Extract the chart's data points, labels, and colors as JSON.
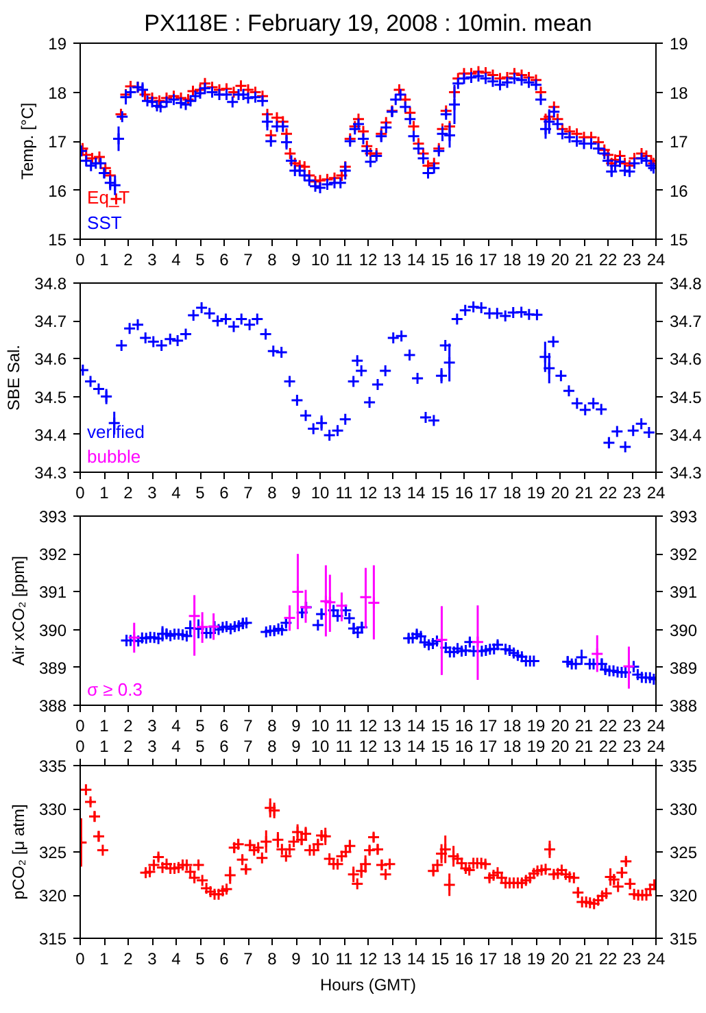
{
  "chart_data": [
    {
      "type": "scatter",
      "title": "PX118E : February 19, 2008 : 10min. mean",
      "ylabel": "Temp. [°C]",
      "xlim": [
        0,
        24
      ],
      "xticks": [
        0,
        1,
        2,
        3,
        4,
        5,
        6,
        7,
        8,
        9,
        10,
        11,
        12,
        13,
        14,
        15,
        16,
        17,
        18,
        19,
        20,
        21,
        22,
        23,
        24
      ],
      "ylim": [
        15,
        19
      ],
      "yticks": [
        15,
        16,
        17,
        18,
        19
      ],
      "y2lim": [
        15,
        19
      ],
      "y2ticks": [
        15,
        16,
        17,
        18,
        19
      ],
      "marker": "cross",
      "legend": "bottom left",
      "series": [
        {
          "name": "Eq_T",
          "color": "#ff0000",
          "x": [
            0.1,
            0.25,
            0.5,
            0.8,
            1.05,
            1.25,
            1.5,
            1.7,
            1.9,
            2.1,
            2.4,
            2.7,
            3.0,
            3.3,
            3.6,
            3.9,
            4.2,
            4.5,
            4.7,
            5.0,
            5.2,
            5.5,
            5.8,
            6.1,
            6.4,
            6.7,
            7.0,
            7.3,
            7.6,
            7.8,
            7.95,
            8.2,
            8.45,
            8.6,
            8.75,
            8.95,
            9.15,
            9.35,
            9.55,
            9.8,
            10.0,
            10.3,
            10.6,
            10.9,
            11.05,
            11.25,
            11.45,
            11.6,
            11.8,
            11.95,
            12.1,
            12.35,
            12.55,
            12.75,
            13.0,
            13.3,
            13.55,
            13.75,
            13.9,
            14.1,
            14.3,
            14.5,
            14.75,
            14.95,
            15.1,
            15.25,
            15.4,
            15.6,
            15.75,
            16.0,
            16.3,
            16.6,
            16.9,
            17.2,
            17.5,
            17.8,
            18.1,
            18.4,
            18.7,
            19.0,
            19.2,
            19.4,
            19.55,
            19.75,
            19.9,
            20.1,
            20.4,
            20.7,
            21.0,
            21.3,
            21.6,
            21.85,
            22.0,
            22.15,
            22.3,
            22.5,
            22.7,
            22.9,
            23.1,
            23.4,
            23.6,
            23.8,
            23.9
          ],
          "values": [
            16.85,
            16.72,
            16.65,
            16.68,
            16.45,
            16.3,
            15.82,
            17.55,
            17.95,
            18.12,
            18.1,
            17.95,
            17.88,
            17.82,
            17.88,
            17.92,
            17.88,
            17.85,
            18.02,
            18.05,
            18.18,
            18.1,
            18.05,
            18.07,
            18.0,
            18.13,
            18.05,
            18.0,
            17.92,
            17.55,
            17.12,
            17.48,
            17.4,
            17.15,
            16.75,
            16.55,
            16.5,
            16.48,
            16.3,
            16.18,
            16.2,
            16.22,
            16.25,
            16.3,
            16.48,
            17.05,
            17.3,
            17.45,
            17.2,
            16.9,
            16.75,
            16.75,
            17.15,
            17.38,
            17.62,
            18.05,
            17.85,
            17.58,
            17.3,
            16.95,
            16.75,
            16.5,
            16.55,
            16.85,
            17.25,
            17.62,
            17.3,
            18.0,
            18.28,
            18.38,
            18.38,
            18.42,
            18.4,
            18.35,
            18.28,
            18.3,
            18.38,
            18.35,
            18.3,
            18.25,
            18.0,
            17.45,
            17.5,
            17.7,
            17.45,
            17.25,
            17.2,
            17.15,
            17.08,
            17.08,
            16.98,
            16.82,
            16.72,
            16.55,
            16.62,
            16.7,
            16.55,
            16.5,
            16.65,
            16.75,
            16.7,
            16.6,
            16.55
          ]
        },
        {
          "name": "SST",
          "color": "#0000ff",
          "x": [
            0.05,
            0.25,
            0.45,
            0.65,
            0.85,
            1.0,
            1.25,
            1.45,
            1.6,
            1.75,
            1.9,
            2.1,
            2.4,
            2.6,
            2.8,
            3.0,
            3.2,
            3.35,
            3.6,
            3.9,
            4.2,
            4.4,
            4.6,
            4.8,
            5.0,
            5.2,
            5.5,
            5.8,
            6.1,
            6.35,
            6.6,
            6.8,
            7.0,
            7.3,
            7.6,
            7.8,
            7.95,
            8.2,
            8.45,
            8.6,
            8.8,
            8.95,
            9.15,
            9.35,
            9.55,
            9.8,
            10.0,
            10.3,
            10.6,
            10.85,
            11.05,
            11.25,
            11.45,
            11.6,
            11.8,
            11.95,
            12.1,
            12.35,
            12.55,
            12.75,
            13.0,
            13.15,
            13.35,
            13.55,
            13.75,
            13.9,
            14.1,
            14.3,
            14.5,
            14.75,
            14.95,
            15.1,
            15.25,
            15.4,
            15.6,
            15.75,
            16.0,
            16.3,
            16.6,
            16.9,
            17.2,
            17.5,
            17.8,
            18.1,
            18.4,
            18.7,
            19.0,
            19.2,
            19.4,
            19.55,
            19.75,
            19.9,
            20.1,
            20.4,
            20.7,
            21.0,
            21.3,
            21.6,
            21.85,
            22.0,
            22.15,
            22.3,
            22.5,
            22.7,
            22.9,
            23.1,
            23.4,
            23.6,
            23.8,
            23.9
          ],
          "values": [
            16.8,
            16.6,
            16.5,
            16.55,
            16.55,
            16.35,
            16.15,
            16.1,
            17.05,
            17.5,
            17.9,
            18.0,
            18.1,
            18.05,
            17.82,
            17.8,
            17.72,
            17.7,
            17.8,
            17.85,
            17.78,
            17.75,
            17.82,
            17.92,
            17.98,
            18.08,
            18.0,
            17.95,
            17.95,
            17.8,
            17.95,
            17.95,
            17.88,
            17.9,
            17.82,
            17.4,
            17.0,
            17.3,
            17.3,
            16.98,
            16.6,
            16.4,
            16.4,
            16.3,
            16.2,
            16.08,
            16.05,
            16.12,
            16.15,
            16.15,
            16.4,
            17.0,
            17.25,
            17.35,
            17.05,
            16.8,
            16.58,
            16.7,
            17.1,
            17.28,
            17.6,
            17.85,
            17.95,
            17.7,
            17.45,
            17.1,
            16.85,
            16.65,
            16.35,
            16.45,
            16.8,
            17.15,
            17.55,
            17.12,
            17.75,
            18.18,
            18.28,
            18.3,
            18.33,
            18.28,
            18.22,
            18.15,
            18.2,
            18.28,
            18.25,
            18.2,
            18.15,
            17.85,
            17.25,
            17.4,
            17.6,
            17.35,
            17.15,
            17.08,
            17.0,
            16.95,
            16.95,
            16.85,
            16.75,
            16.6,
            16.38,
            16.5,
            16.58,
            16.4,
            16.38,
            16.55,
            16.65,
            16.6,
            16.5,
            16.45
          ],
          "errors": [
            null,
            null,
            null,
            null,
            null,
            0.1,
            0.15,
            0.2,
            0.25,
            null,
            0.15,
            null,
            null,
            0.15,
            null,
            null,
            null,
            null,
            null,
            null,
            null,
            null,
            null,
            null,
            null,
            null,
            null,
            null,
            null,
            null,
            null,
            null,
            null,
            null,
            null,
            0.18,
            null,
            null,
            null,
            0.15,
            null,
            null,
            null,
            null,
            null,
            null,
            null,
            null,
            null,
            null,
            0.18,
            null,
            null,
            null,
            null,
            null,
            null,
            null,
            0.12,
            null,
            0.1,
            null,
            null,
            null,
            null,
            null,
            null,
            null,
            null,
            null,
            null,
            0.15,
            null,
            0.25,
            0.4,
            null,
            null,
            null,
            null,
            null,
            null,
            null,
            null,
            null,
            null,
            null,
            null,
            null,
            0.2,
            0.25,
            null,
            null,
            null,
            null,
            null,
            null,
            null,
            null,
            null,
            null,
            0.1,
            null,
            null,
            null,
            null,
            null,
            null,
            null,
            null,
            null
          ]
        }
      ]
    },
    {
      "type": "scatter",
      "ylabel": "SBE Sal.",
      "xlim": [
        0,
        24
      ],
      "xticks": [
        0,
        1,
        2,
        3,
        4,
        5,
        6,
        7,
        8,
        9,
        10,
        11,
        12,
        13,
        14,
        15,
        16,
        17,
        18,
        19,
        20,
        21,
        22,
        23,
        24
      ],
      "ylim": [
        34.3,
        34.8
      ],
      "yticks": [
        34.3,
        34.4,
        34.5,
        34.6,
        34.7,
        34.8
      ],
      "y2lim": [
        34.3,
        34.8
      ],
      "y2ticks": [
        34.3,
        34.4,
        34.5,
        34.6,
        34.7,
        34.8
      ],
      "marker": "cross",
      "legend": "bottom left",
      "series": [
        {
          "name": "verified",
          "color": "#0000ff",
          "x": [
            0.11,
            0.43,
            0.77,
            1.09,
            1.42,
            1.72,
            2.06,
            2.4,
            2.72,
            3.05,
            3.39,
            3.75,
            4.06,
            4.4,
            4.72,
            5.06,
            5.39,
            5.73,
            6.07,
            6.4,
            6.72,
            7.06,
            7.38,
            7.73,
            8.05,
            8.39,
            8.73,
            9.04,
            9.4,
            9.72,
            10.06,
            10.39,
            10.73,
            11.05,
            11.39,
            11.55,
            11.72,
            12.06,
            12.4,
            12.72,
            13.05,
            13.39,
            13.73,
            14.06,
            14.4,
            14.74,
            15.06,
            15.22,
            15.39,
            15.71,
            16.05,
            16.39,
            16.72,
            17.06,
            17.38,
            17.72,
            18.05,
            18.39,
            18.71,
            19.04,
            19.38,
            19.55,
            19.72,
            20.04,
            20.37,
            20.71,
            21.05,
            21.39,
            21.72,
            22.04,
            22.38,
            22.72,
            23.05,
            23.39,
            23.71
          ],
          "values": [
            34.57,
            34.54,
            34.52,
            34.5,
            34.43,
            34.635,
            34.68,
            34.69,
            34.655,
            34.645,
            34.635,
            34.652,
            34.648,
            34.665,
            34.715,
            34.735,
            34.72,
            34.7,
            34.705,
            34.685,
            34.705,
            34.69,
            34.705,
            34.665,
            34.62,
            34.617,
            34.54,
            34.49,
            34.45,
            34.415,
            34.43,
            34.398,
            34.41,
            34.44,
            34.54,
            34.595,
            34.568,
            34.485,
            34.532,
            34.568,
            34.655,
            34.66,
            34.61,
            34.548,
            34.445,
            34.437,
            34.555,
            34.635,
            34.59,
            34.705,
            34.728,
            34.737,
            34.735,
            34.72,
            34.72,
            34.713,
            34.722,
            34.723,
            34.717,
            34.716,
            34.605,
            34.575,
            34.645,
            34.555,
            34.515,
            34.482,
            34.465,
            34.482,
            34.466,
            34.378,
            34.408,
            34.367,
            34.41,
            34.428,
            34.405
          ],
          "errors": [
            null,
            null,
            null,
            0.02,
            0.03,
            null,
            null,
            null,
            null,
            null,
            null,
            null,
            null,
            null,
            null,
            null,
            null,
            null,
            null,
            null,
            null,
            null,
            null,
            null,
            null,
            null,
            null,
            null,
            null,
            null,
            0.02,
            null,
            null,
            null,
            null,
            null,
            null,
            null,
            null,
            null,
            null,
            null,
            null,
            null,
            null,
            null,
            0.02,
            null,
            0.05,
            null,
            null,
            null,
            null,
            null,
            null,
            null,
            null,
            null,
            null,
            null,
            0.04,
            0.04,
            null,
            null,
            null,
            null,
            null,
            null,
            null,
            0.015,
            null,
            null,
            null,
            null,
            null
          ]
        },
        {
          "name": "bubble",
          "color": "#ff00ff"
        }
      ]
    },
    {
      "type": "scatter",
      "ylabel": "Air xCO₂ [ppm]",
      "xlim": [
        0,
        24
      ],
      "xticks": [
        0,
        1,
        2,
        3,
        4,
        5,
        6,
        7,
        8,
        9,
        10,
        11,
        12,
        13,
        14,
        15,
        16,
        17,
        18,
        19,
        20,
        21,
        22,
        23,
        24
      ],
      "ylim": [
        388,
        393
      ],
      "yticks": [
        388,
        389,
        390,
        391,
        392,
        393
      ],
      "y2lim": [
        388,
        393
      ],
      "y2ticks": [
        388,
        389,
        390,
        391,
        392,
        393
      ],
      "marker": "cross",
      "legend": "bottom left",
      "series": [
        {
          "color": "#0000ff",
          "x": [
            1.93,
            2.1,
            2.42,
            2.58,
            2.75,
            2.92,
            3.09,
            3.26,
            3.43,
            3.6,
            3.76,
            3.93,
            4.1,
            4.27,
            4.44,
            4.59,
            4.93,
            5.26,
            5.43,
            5.6,
            5.77,
            5.94,
            6.1,
            6.27,
            6.44,
            6.61,
            6.78,
            6.93,
            7.75,
            7.92,
            8.09,
            8.26,
            8.41,
            8.58,
            9.25,
            9.42,
            9.91,
            10.06,
            10.56,
            10.73,
            11.07,
            11.22,
            11.4,
            11.57,
            11.74,
            13.69,
            13.86,
            14.03,
            14.2,
            14.36,
            14.53,
            14.7,
            14.87,
            15.24,
            15.41,
            15.58,
            15.73,
            15.9,
            16.07,
            16.24,
            16.4,
            16.74,
            16.91,
            17.08,
            17.25,
            17.4,
            17.73,
            17.9,
            18.07,
            18.24,
            18.41,
            18.58,
            18.75,
            18.91,
            20.32,
            20.49,
            20.66,
            20.9,
            21.24,
            21.4,
            21.74,
            21.89,
            22.06,
            22.23,
            22.4,
            22.57,
            22.73,
            23.07,
            23.24,
            23.41,
            23.58,
            23.75,
            23.91
          ],
          "values": [
            389.71,
            389.71,
            389.7,
            389.78,
            389.77,
            389.8,
            389.79,
            389.76,
            389.89,
            389.89,
            389.84,
            389.88,
            389.88,
            389.86,
            389.83,
            390.04,
            390.02,
            389.91,
            389.91,
            390.08,
            390.0,
            390.06,
            390.08,
            390.02,
            390.08,
            390.1,
            390.16,
            390.18,
            389.94,
            389.97,
            389.97,
            390.02,
            389.99,
            390.18,
            390.45,
            390.59,
            390.12,
            390.41,
            390.51,
            390.36,
            390.51,
            390.3,
            390.03,
            389.92,
            390.06,
            389.77,
            389.78,
            389.88,
            389.82,
            389.66,
            389.6,
            389.63,
            389.7,
            389.52,
            389.41,
            389.41,
            389.5,
            389.43,
            389.45,
            389.67,
            389.43,
            389.43,
            389.45,
            389.48,
            389.49,
            389.6,
            389.48,
            389.45,
            389.38,
            389.32,
            389.28,
            389.17,
            389.17,
            389.17,
            389.15,
            389.09,
            389.09,
            389.27,
            389.09,
            389.09,
            389.09,
            388.94,
            388.91,
            388.91,
            388.88,
            388.87,
            388.87,
            389.02,
            388.81,
            388.74,
            388.73,
            388.73,
            388.69
          ],
          "errors": [
            0.15,
            null,
            null,
            null,
            null,
            null,
            null,
            null,
            0.2,
            0.12,
            null,
            null,
            null,
            null,
            null,
            0.2,
            0.25,
            null,
            null,
            null,
            null,
            null,
            0.12,
            null,
            null,
            0.1,
            0.15,
            null,
            null,
            null,
            0.1,
            null,
            null,
            0.1,
            0.15,
            null,
            null,
            0.15,
            0.12,
            0.15,
            0.15,
            null,
            0.15,
            null,
            0.15,
            0.12,
            null,
            0.1,
            null,
            null,
            null,
            null,
            null,
            null,
            null,
            null,
            null,
            null,
            null,
            0.12,
            null,
            null,
            null,
            null,
            null,
            0.1,
            null,
            0.1,
            null,
            null,
            null,
            null,
            null,
            null,
            0.15,
            null,
            null,
            0.2,
            null,
            null,
            0.15,
            0.1,
            null,
            null,
            null,
            null,
            null,
            0.15,
            null,
            null,
            null,
            null,
            null
          ]
        },
        {
          "name": "σ ≥ 0.3",
          "color": "#ff00ff",
          "x": [
            2.25,
            4.76,
            5.09,
            5.56,
            8.73,
            9.07,
            9.4,
            10.24,
            10.41,
            10.9,
            11.9,
            12.24,
            15.07,
            16.57,
            21.55,
            22.87
          ],
          "values": [
            389.79,
            390.36,
            390.07,
            390.08,
            390.31,
            391.0,
            390.59,
            390.75,
            390.72,
            390.63,
            390.86,
            390.71,
            389.73,
            389.67,
            389.36,
            389.03
          ],
          "errors": [
            [
              389.39,
              390.18
            ],
            [
              389.31,
              390.91
            ],
            [
              389.65,
              390.46
            ],
            [
              389.73,
              390.43
            ],
            [
              389.97,
              390.64
            ],
            [
              390.01,
              392.0
            ],
            [
              390.18,
              391.05
            ],
            [
              389.82,
              391.7
            ],
            [
              389.94,
              391.45
            ],
            [
              390.22,
              390.98
            ],
            [
              390.03,
              391.63
            ],
            [
              389.74,
              391.7
            ],
            [
              388.8,
              390.62
            ],
            [
              388.67,
              390.64
            ],
            [
              388.88,
              389.85
            ],
            [
              388.44,
              389.55
            ]
          ]
        }
      ]
    },
    {
      "type": "scatter",
      "xlabel": "Hours (GMT)",
      "ylabel": "pCO₂ [μ atm]",
      "xlim": [
        0,
        24
      ],
      "xticks": [
        0,
        1,
        2,
        3,
        4,
        5,
        6,
        7,
        8,
        9,
        10,
        11,
        12,
        13,
        14,
        15,
        16,
        17,
        18,
        19,
        20,
        21,
        22,
        23,
        24
      ],
      "x2lim": [
        0,
        24
      ],
      "x2ticks": [
        0,
        1,
        2,
        3,
        4,
        5,
        6,
        7,
        8,
        9,
        10,
        11,
        12,
        13,
        14,
        15,
        16,
        17,
        18,
        19,
        20,
        21,
        22,
        23,
        24
      ],
      "ylim": [
        315,
        335
      ],
      "yticks": [
        315,
        320,
        325,
        330,
        335
      ],
      "y2lim": [
        315,
        335
      ],
      "y2ticks": [
        315,
        320,
        325,
        330,
        335
      ],
      "marker": "cross",
      "series": [
        {
          "color": "#ff0000",
          "x": [
            0.04,
            0.24,
            0.43,
            0.6,
            0.77,
            0.94,
            2.73,
            2.9,
            3.07,
            3.26,
            3.43,
            3.6,
            3.76,
            3.93,
            4.1,
            4.27,
            4.44,
            4.59,
            4.76,
            4.93,
            5.09,
            5.26,
            5.43,
            5.6,
            5.77,
            5.94,
            6.1,
            6.25,
            6.42,
            6.59,
            6.76,
            6.91,
            7.08,
            7.25,
            7.42,
            7.58,
            7.75,
            7.92,
            8.09,
            8.24,
            8.41,
            8.58,
            8.73,
            8.9,
            9.06,
            9.23,
            9.4,
            9.57,
            9.74,
            9.91,
            10.06,
            10.22,
            10.39,
            10.56,
            10.73,
            10.9,
            11.07,
            11.24,
            11.39,
            11.55,
            11.72,
            11.89,
            12.06,
            12.23,
            12.4,
            12.57,
            12.73,
            12.9,
            14.72,
            14.89,
            15.06,
            15.22,
            15.39,
            15.56,
            15.73,
            15.9,
            16.07,
            16.22,
            16.39,
            16.55,
            16.72,
            16.89,
            17.06,
            17.23,
            17.4,
            17.57,
            17.73,
            17.9,
            18.07,
            18.24,
            18.41,
            18.58,
            18.75,
            18.91,
            19.06,
            19.23,
            19.4,
            19.57,
            19.74,
            19.91,
            20.07,
            20.24,
            20.4,
            20.58,
            20.75,
            20.92,
            21.09,
            21.25,
            21.42,
            21.59,
            21.76,
            21.93,
            22.1,
            22.25,
            22.42,
            22.58,
            22.75,
            22.92,
            23.09,
            23.26,
            23.43,
            23.6,
            23.76,
            23.93
          ],
          "values": [
            326.1,
            332.2,
            330.8,
            329.1,
            326.8,
            325.2,
            322.6,
            322.7,
            323.5,
            324.4,
            323.2,
            323.6,
            323.1,
            323.1,
            323.2,
            323.5,
            323.5,
            322.7,
            322.0,
            323.5,
            321.7,
            320.8,
            320.4,
            320.1,
            320.1,
            320.5,
            320.7,
            322.3,
            325.5,
            325.9,
            324.1,
            323.0,
            325.8,
            325.2,
            325.5,
            324.3,
            326.2,
            330.1,
            329.8,
            326.4,
            325.3,
            324.5,
            325.3,
            326.2,
            327.3,
            326.4,
            327.1,
            325.2,
            325.2,
            325.9,
            326.9,
            326.8,
            324.2,
            323.6,
            323.6,
            324.5,
            325.0,
            325.7,
            322.4,
            321.3,
            322.8,
            323.6,
            325.2,
            326.7,
            325.3,
            323.5,
            322.4,
            323.6,
            322.8,
            323.5,
            324.8,
            325.3,
            321.2,
            324.5,
            324.2,
            323.7,
            323.1,
            322.9,
            323.7,
            323.7,
            323.7,
            323.6,
            322.0,
            322.3,
            322.6,
            322.0,
            321.4,
            321.4,
            321.4,
            321.4,
            321.4,
            321.7,
            322.0,
            322.5,
            322.8,
            322.9,
            323.0,
            325.3,
            322.4,
            322.5,
            322.9,
            322.4,
            322.1,
            322.0,
            320.3,
            319.2,
            319.2,
            319.1,
            319.0,
            319.4,
            319.9,
            320.2,
            322.1,
            321.8,
            321.0,
            322.6,
            323.9,
            321.3,
            320.1,
            320.0,
            320.0,
            320.0,
            320.7,
            321.2
          ],
          "errors": [
            [
              323.3,
              328.9
            ],
            null,
            0.3,
            0.6,
            0.6,
            null,
            null,
            null,
            0.5,
            0.4,
            null,
            null,
            null,
            null,
            null,
            null,
            null,
            null,
            0.4,
            0.4,
            null,
            null,
            null,
            null,
            null,
            null,
            null,
            1.0,
            0.6,
            0.6,
            0.5,
            0.4,
            0.4,
            null,
            null,
            null,
            1.3,
            1.1,
            0.9,
            0.9,
            null,
            null,
            null,
            0.5,
            0.9,
            0.6,
            0.8,
            null,
            null,
            0.5,
            0.5,
            1.0,
            null,
            null,
            0.5,
            null,
            0.6,
            0.7,
            0.9,
            null,
            0.8,
            1.0,
            0.5,
            0.5,
            0.6,
            0.6,
            null,
            0.4,
            0.5,
            null,
            1.1,
            1.6,
            1.3,
            1.2,
            null,
            0.4,
            null,
            null,
            null,
            null,
            null,
            0.4,
            0.4,
            null,
            null,
            null,
            null,
            null,
            null,
            null,
            null,
            null,
            null,
            null,
            null,
            null,
            null,
            1.0,
            0.4,
            null,
            null,
            null,
            null,
            null,
            0.5,
            null,
            null,
            null,
            null,
            null,
            0.3,
            0.6,
            1.0,
            0.6,
            null,
            0.6,
            0.4,
            0.6,
            null,
            null,
            null,
            null,
            null,
            null
          ]
        }
      ]
    }
  ]
}
